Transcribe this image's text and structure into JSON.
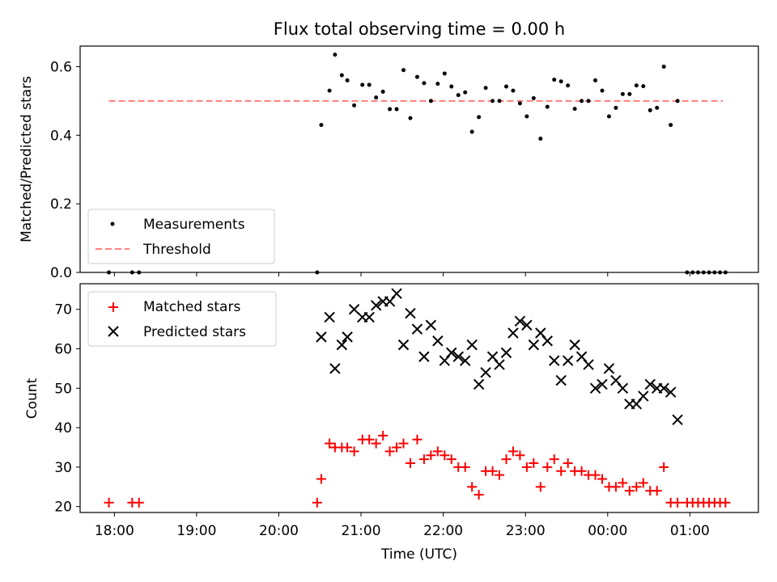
{
  "figure": {
    "title": "Flux total observing time = 0.00 h",
    "xlabel": "Time (UTC)"
  },
  "colors": {
    "measurement": "#000000",
    "threshold": "#ff7f7f",
    "matched": "#ff0000",
    "predicted": "#000000"
  },
  "chart_data": [
    {
      "type": "scatter",
      "ylabel": "Matched/Predicted stars",
      "xlim": [
        "17:35",
        "01:50"
      ],
      "ylim": [
        0,
        0.66
      ],
      "x_ticks": [
        "18:00",
        "19:00",
        "20:00",
        "21:00",
        "22:00",
        "23:00",
        "00:00",
        "01:00"
      ],
      "y_ticks": [
        "0.0",
        "0.2",
        "0.4",
        "0.6"
      ],
      "legend_position": "lower-left",
      "legend": [
        "Measurements",
        "Threshold"
      ],
      "threshold": {
        "name": "Threshold",
        "value": 0.5,
        "x_range": [
          "17:56",
          "01:24"
        ]
      },
      "series": [
        {
          "name": "Measurements",
          "points": [
            [
              "17:56",
              0.0
            ],
            [
              "18:13",
              0.0
            ],
            [
              "18:18",
              0.0
            ],
            [
              "20:28",
              0.0
            ],
            [
              "20:31",
              0.43
            ],
            [
              "20:37",
              0.53
            ],
            [
              "20:41",
              0.635
            ],
            [
              "20:46",
              0.575
            ],
            [
              "20:50",
              0.56
            ],
            [
              "20:55",
              0.487
            ],
            [
              "21:01",
              0.547
            ],
            [
              "21:06",
              0.547
            ],
            [
              "21:11",
              0.51
            ],
            [
              "21:16",
              0.527
            ],
            [
              "21:21",
              0.476
            ],
            [
              "21:26",
              0.476
            ],
            [
              "21:31",
              0.59
            ],
            [
              "21:36",
              0.45
            ],
            [
              "21:41",
              0.57
            ],
            [
              "21:46",
              0.552
            ],
            [
              "21:51",
              0.5
            ],
            [
              "21:56",
              0.55
            ],
            [
              "22:01",
              0.58
            ],
            [
              "22:06",
              0.542
            ],
            [
              "22:11",
              0.517
            ],
            [
              "22:16",
              0.525
            ],
            [
              "22:21",
              0.41
            ],
            [
              "22:26",
              0.453
            ],
            [
              "22:31",
              0.538
            ],
            [
              "22:36",
              0.5
            ],
            [
              "22:41",
              0.5
            ],
            [
              "22:46",
              0.542
            ],
            [
              "22:51",
              0.53
            ],
            [
              "22:56",
              0.493
            ],
            [
              "23:01",
              0.455
            ],
            [
              "23:06",
              0.508
            ],
            [
              "23:11",
              0.39
            ],
            [
              "23:16",
              0.483
            ],
            [
              "23:21",
              0.562
            ],
            [
              "23:26",
              0.557
            ],
            [
              "23:31",
              0.545
            ],
            [
              "23:36",
              0.477
            ],
            [
              "23:41",
              0.5
            ],
            [
              "23:46",
              0.5
            ],
            [
              "23:51",
              0.56
            ],
            [
              "23:56",
              0.53
            ],
            [
              "00:01",
              0.455
            ],
            [
              "00:06",
              0.48
            ],
            [
              "00:11",
              0.52
            ],
            [
              "00:16",
              0.52
            ],
            [
              "00:21",
              0.545
            ],
            [
              "00:26",
              0.543
            ],
            [
              "00:31",
              0.473
            ],
            [
              "00:36",
              0.48
            ],
            [
              "00:41",
              0.6
            ],
            [
              "00:46",
              0.43
            ],
            [
              "00:51",
              0.5
            ],
            [
              "00:58",
              0.0
            ],
            [
              "01:02",
              0.0
            ],
            [
              "01:06",
              0.0
            ],
            [
              "01:10",
              0.0
            ],
            [
              "01:14",
              0.0
            ],
            [
              "01:18",
              0.0
            ],
            [
              "01:22",
              0.0
            ],
            [
              "01:26",
              0.0
            ]
          ]
        }
      ]
    },
    {
      "type": "scatter",
      "ylabel": "Count",
      "xlim": [
        "17:35",
        "01:50"
      ],
      "ylim": [
        18.5,
        76.5
      ],
      "x_ticks": [
        "18:00",
        "19:00",
        "20:00",
        "21:00",
        "22:00",
        "23:00",
        "00:00",
        "01:00"
      ],
      "y_ticks": [
        "20",
        "30",
        "40",
        "50",
        "60",
        "70"
      ],
      "legend_position": "upper-left",
      "legend": [
        "Matched stars",
        "Predicted stars"
      ],
      "series": [
        {
          "name": "Matched stars",
          "marker": "+",
          "points": [
            [
              "17:56",
              21
            ],
            [
              "18:13",
              21
            ],
            [
              "18:18",
              21
            ],
            [
              "20:28",
              21
            ],
            [
              "20:31",
              27
            ],
            [
              "20:37",
              36
            ],
            [
              "20:41",
              35
            ],
            [
              "20:46",
              35
            ],
            [
              "20:50",
              35
            ],
            [
              "20:55",
              34
            ],
            [
              "21:01",
              37
            ],
            [
              "21:06",
              37
            ],
            [
              "21:11",
              36
            ],
            [
              "21:16",
              38
            ],
            [
              "21:21",
              34
            ],
            [
              "21:26",
              35
            ],
            [
              "21:31",
              36
            ],
            [
              "21:36",
              31
            ],
            [
              "21:41",
              37
            ],
            [
              "21:46",
              32
            ],
            [
              "21:51",
              33
            ],
            [
              "21:56",
              34
            ],
            [
              "22:01",
              33
            ],
            [
              "22:06",
              32
            ],
            [
              "22:11",
              30
            ],
            [
              "22:16",
              30
            ],
            [
              "22:21",
              25
            ],
            [
              "22:26",
              23
            ],
            [
              "22:31",
              29
            ],
            [
              "22:36",
              29
            ],
            [
              "22:41",
              28
            ],
            [
              "22:46",
              32
            ],
            [
              "22:51",
              34
            ],
            [
              "22:56",
              33
            ],
            [
              "23:01",
              30
            ],
            [
              "23:06",
              31
            ],
            [
              "23:11",
              25
            ],
            [
              "23:16",
              30
            ],
            [
              "23:21",
              32
            ],
            [
              "23:26",
              29
            ],
            [
              "23:31",
              31
            ],
            [
              "23:36",
              29
            ],
            [
              "23:41",
              29
            ],
            [
              "23:46",
              28
            ],
            [
              "23:51",
              28
            ],
            [
              "23:56",
              27
            ],
            [
              "00:01",
              25
            ],
            [
              "00:06",
              25
            ],
            [
              "00:11",
              26
            ],
            [
              "00:16",
              24
            ],
            [
              "00:21",
              25
            ],
            [
              "00:26",
              26
            ],
            [
              "00:31",
              24
            ],
            [
              "00:36",
              24
            ],
            [
              "00:41",
              30
            ],
            [
              "00:46",
              21
            ],
            [
              "00:51",
              21
            ],
            [
              "00:58",
              21
            ],
            [
              "01:02",
              21
            ],
            [
              "01:06",
              21
            ],
            [
              "01:10",
              21
            ],
            [
              "01:14",
              21
            ],
            [
              "01:18",
              21
            ],
            [
              "01:22",
              21
            ],
            [
              "01:26",
              21
            ]
          ]
        },
        {
          "name": "Predicted stars",
          "marker": "x",
          "points": [
            [
              "20:31",
              63
            ],
            [
              "20:37",
              68
            ],
            [
              "20:41",
              55
            ],
            [
              "20:46",
              61
            ],
            [
              "20:50",
              63
            ],
            [
              "20:55",
              70
            ],
            [
              "21:01",
              68
            ],
            [
              "21:06",
              68
            ],
            [
              "21:11",
              71
            ],
            [
              "21:16",
              72
            ],
            [
              "21:21",
              72
            ],
            [
              "21:26",
              74
            ],
            [
              "21:31",
              61
            ],
            [
              "21:36",
              69
            ],
            [
              "21:41",
              65
            ],
            [
              "21:46",
              58
            ],
            [
              "21:51",
              66
            ],
            [
              "21:56",
              62
            ],
            [
              "22:01",
              57
            ],
            [
              "22:06",
              59
            ],
            [
              "22:11",
              58
            ],
            [
              "22:16",
              57
            ],
            [
              "22:21",
              61
            ],
            [
              "22:26",
              51
            ],
            [
              "22:31",
              54
            ],
            [
              "22:36",
              58
            ],
            [
              "22:41",
              56
            ],
            [
              "22:46",
              59
            ],
            [
              "22:51",
              64
            ],
            [
              "22:56",
              67
            ],
            [
              "23:01",
              66
            ],
            [
              "23:06",
              61
            ],
            [
              "23:11",
              64
            ],
            [
              "23:16",
              62
            ],
            [
              "23:21",
              57
            ],
            [
              "23:26",
              52
            ],
            [
              "23:31",
              57
            ],
            [
              "23:36",
              61
            ],
            [
              "23:41",
              58
            ],
            [
              "23:46",
              56
            ],
            [
              "23:51",
              50
            ],
            [
              "23:56",
              51
            ],
            [
              "00:01",
              55
            ],
            [
              "00:06",
              52
            ],
            [
              "00:11",
              50
            ],
            [
              "00:16",
              46
            ],
            [
              "00:21",
              46
            ],
            [
              "00:26",
              48
            ],
            [
              "00:31",
              51
            ],
            [
              "00:36",
              50
            ],
            [
              "00:41",
              50
            ],
            [
              "00:46",
              49
            ],
            [
              "00:51",
              42
            ]
          ]
        }
      ]
    }
  ]
}
